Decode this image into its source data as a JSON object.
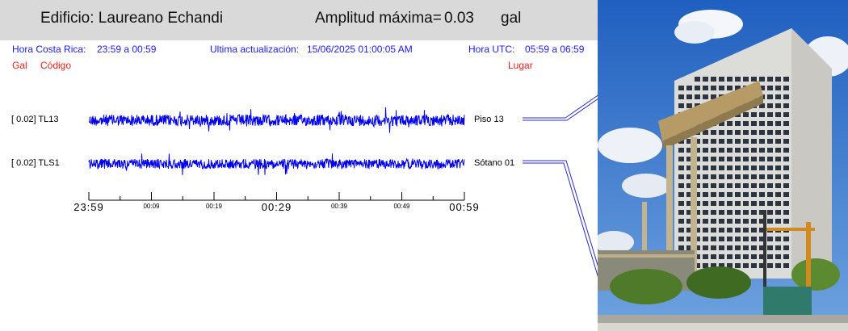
{
  "header": {
    "building_label": "Edificio: Laureano Echandi",
    "amplitude_label": "Amplitud máxima=",
    "amplitude_value": "0.03",
    "amplitude_unit": "gal"
  },
  "info": {
    "cr_time_label": "Hora Costa Rica:",
    "cr_time_value": "23:59 a 00:59",
    "update_label": "Ultima actualización:",
    "update_value": "15/06/2025 01:00:05 AM",
    "utc_label": "Hora UTC:",
    "utc_value": "05:59 a 06:59",
    "col_gal": "Gal",
    "col_code": "Código",
    "col_place": "Lugar"
  },
  "colors": {
    "accent": "#1a1aff",
    "label_red": "#ff1a1a",
    "header_bg": "#d9d9d9",
    "trace": "#0000ee"
  },
  "chart_data": {
    "type": "line",
    "title": "",
    "xlabel": "",
    "ylabel": "",
    "x_ticks_major": [
      "23:59",
      "00:29",
      "00:59"
    ],
    "x_ticks_minor": [
      "00:09",
      "00:19",
      "00:39",
      "00:49"
    ],
    "series": [
      {
        "channel": "[   0.02] TL13",
        "code": "TL13",
        "max_gal": 0.02,
        "place": "Piso 13"
      },
      {
        "channel": "[   0.02] TLS1",
        "code": "TLS1",
        "max_gal": 0.02,
        "place": "Sótano 01"
      }
    ]
  },
  "photo": {
    "icon": "building-photo"
  }
}
